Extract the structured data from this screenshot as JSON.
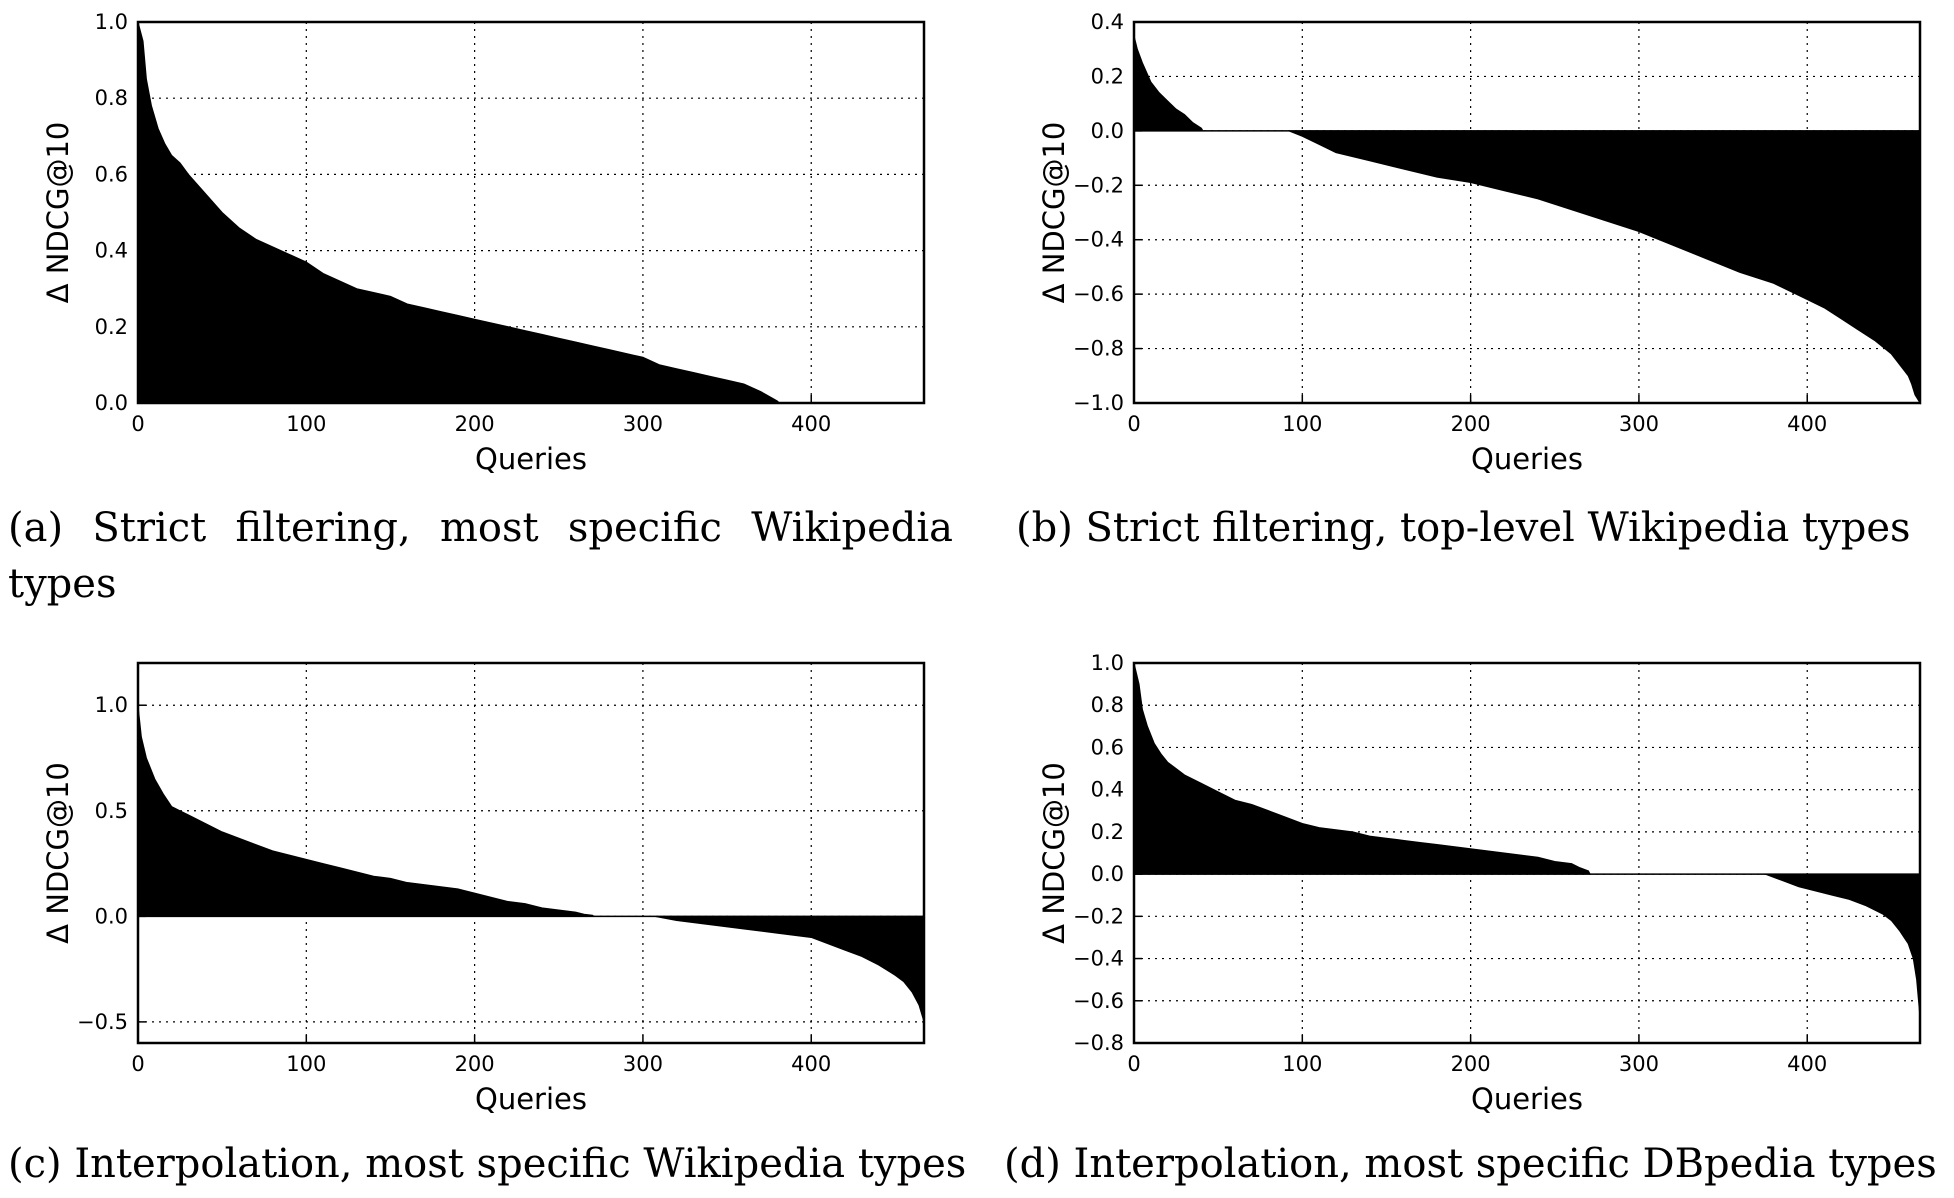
{
  "figure": {
    "captions": [
      "(a) Strict filtering, most specific Wikipedia types",
      "(b) Strict filtering, top-level Wikipedia types",
      "(c) Interpolation, most specific Wikipedia types",
      "(d) Interpolation, most specific DBpedia types"
    ]
  },
  "chart_data": [
    {
      "type": "area",
      "xlabel": "Queries",
      "ylabel": "Δ NDCG@10",
      "xlim": [
        0,
        467
      ],
      "ylim": [
        0.0,
        1.0
      ],
      "xticks": [
        0,
        100,
        200,
        300,
        400
      ],
      "yticks": [
        0.0,
        0.2,
        0.4,
        0.6,
        0.8,
        1.0
      ],
      "ytick_labels": [
        "0.0",
        "0.2",
        "0.4",
        "0.6",
        "0.8",
        "1.0"
      ],
      "grid": true,
      "fill_color": "#000000",
      "series": [
        {
          "x": [
            0,
            3,
            5,
            8,
            12,
            16,
            20,
            25,
            30,
            40,
            50,
            60,
            70,
            80,
            90,
            100,
            110,
            120,
            130,
            140,
            150,
            160,
            170,
            180,
            190,
            200,
            210,
            220,
            230,
            240,
            250,
            260,
            270,
            280,
            290,
            300,
            310,
            320,
            330,
            340,
            350,
            360,
            370,
            378,
            380,
            381,
            467
          ],
          "y": [
            1.0,
            0.95,
            0.85,
            0.78,
            0.72,
            0.68,
            0.65,
            0.63,
            0.6,
            0.55,
            0.5,
            0.46,
            0.43,
            0.41,
            0.39,
            0.37,
            0.34,
            0.32,
            0.3,
            0.29,
            0.28,
            0.26,
            0.25,
            0.24,
            0.23,
            0.22,
            0.21,
            0.2,
            0.19,
            0.18,
            0.17,
            0.16,
            0.15,
            0.14,
            0.13,
            0.12,
            0.1,
            0.09,
            0.08,
            0.07,
            0.06,
            0.05,
            0.03,
            0.01,
            0.005,
            0.0,
            0.0
          ]
        }
      ]
    },
    {
      "type": "area",
      "xlabel": "Queries",
      "ylabel": "Δ NDCG@10",
      "xlim": [
        0,
        467
      ],
      "ylim": [
        -1.0,
        0.4
      ],
      "xticks": [
        0,
        100,
        200,
        300,
        400
      ],
      "yticks": [
        -1.0,
        -0.8,
        -0.6,
        -0.4,
        -0.2,
        0.0,
        0.2,
        0.4
      ],
      "ytick_labels": [
        "−1.0",
        "−0.8",
        "−0.6",
        "−0.4",
        "−0.2",
        "0.0",
        "0.2",
        "0.4"
      ],
      "grid": true,
      "fill_color": "#000000",
      "series": [
        {
          "x": [
            0,
            2,
            5,
            10,
            15,
            20,
            25,
            30,
            35,
            40,
            41,
            90,
            92,
            100,
            110,
            120,
            140,
            160,
            180,
            200,
            220,
            240,
            260,
            280,
            300,
            320,
            340,
            360,
            380,
            400,
            410,
            420,
            430,
            440,
            450,
            455,
            460,
            462,
            464,
            467
          ],
          "y": [
            0.35,
            0.3,
            0.25,
            0.18,
            0.14,
            0.11,
            0.08,
            0.06,
            0.03,
            0.01,
            0.0,
            0.0,
            -0.0,
            -0.02,
            -0.05,
            -0.08,
            -0.11,
            -0.14,
            -0.17,
            -0.19,
            -0.22,
            -0.25,
            -0.29,
            -0.33,
            -0.37,
            -0.42,
            -0.47,
            -0.52,
            -0.56,
            -0.62,
            -0.65,
            -0.69,
            -0.73,
            -0.77,
            -0.82,
            -0.86,
            -0.9,
            -0.93,
            -0.97,
            -1.0
          ]
        }
      ]
    },
    {
      "type": "area",
      "xlabel": "Queries",
      "ylabel": "Δ NDCG@10",
      "xlim": [
        0,
        467
      ],
      "ylim": [
        -0.6,
        1.2
      ],
      "xticks": [
        0,
        100,
        200,
        300,
        400
      ],
      "yticks": [
        -0.5,
        0.0,
        0.5,
        1.0
      ],
      "ytick_labels": [
        "−0.5",
        "0.0",
        "0.5",
        "1.0"
      ],
      "grid": true,
      "fill_color": "#000000",
      "series": [
        {
          "x": [
            0,
            2,
            5,
            10,
            15,
            20,
            25,
            30,
            40,
            50,
            60,
            70,
            80,
            90,
            100,
            110,
            120,
            130,
            140,
            150,
            160,
            170,
            180,
            190,
            200,
            210,
            220,
            230,
            240,
            250,
            260,
            265,
            270,
            271,
            305,
            307,
            320,
            340,
            360,
            380,
            400,
            410,
            420,
            430,
            440,
            450,
            455,
            460,
            464,
            467
          ],
          "y": [
            1.0,
            0.85,
            0.75,
            0.65,
            0.58,
            0.52,
            0.5,
            0.48,
            0.44,
            0.4,
            0.37,
            0.34,
            0.31,
            0.29,
            0.27,
            0.25,
            0.23,
            0.21,
            0.19,
            0.18,
            0.16,
            0.15,
            0.14,
            0.13,
            0.11,
            0.09,
            0.07,
            0.06,
            0.04,
            0.03,
            0.02,
            0.01,
            0.005,
            0.0,
            0.0,
            -0.0,
            -0.02,
            -0.04,
            -0.06,
            -0.08,
            -0.1,
            -0.13,
            -0.16,
            -0.19,
            -0.23,
            -0.28,
            -0.31,
            -0.36,
            -0.42,
            -0.5
          ]
        }
      ]
    },
    {
      "type": "area",
      "xlabel": "Queries",
      "ylabel": "Δ NDCG@10",
      "xlim": [
        0,
        467
      ],
      "ylim": [
        -0.8,
        1.0
      ],
      "xticks": [
        0,
        100,
        200,
        300,
        400
      ],
      "yticks": [
        -0.8,
        -0.6,
        -0.4,
        -0.2,
        0.0,
        0.2,
        0.4,
        0.6,
        0.8,
        1.0
      ],
      "ytick_labels": [
        "−0.8",
        "−0.6",
        "−0.4",
        "−0.2",
        "0.0",
        "0.2",
        "0.4",
        "0.6",
        "0.8",
        "1.0"
      ],
      "grid": true,
      "fill_color": "#000000",
      "series": [
        {
          "x": [
            0,
            3,
            5,
            8,
            12,
            16,
            20,
            25,
            30,
            40,
            50,
            60,
            70,
            80,
            90,
            100,
            110,
            120,
            130,
            140,
            150,
            160,
            170,
            180,
            190,
            200,
            210,
            220,
            230,
            240,
            250,
            260,
            265,
            270,
            271,
            373,
            375,
            385,
            395,
            405,
            415,
            425,
            435,
            445,
            450,
            455,
            460,
            463,
            465,
            467
          ],
          "y": [
            1.0,
            0.9,
            0.78,
            0.7,
            0.62,
            0.57,
            0.53,
            0.5,
            0.47,
            0.43,
            0.39,
            0.35,
            0.33,
            0.3,
            0.27,
            0.24,
            0.22,
            0.21,
            0.2,
            0.18,
            0.17,
            0.16,
            0.15,
            0.14,
            0.13,
            0.12,
            0.11,
            0.1,
            0.09,
            0.08,
            0.06,
            0.05,
            0.03,
            0.015,
            0.0,
            0.0,
            -0.0,
            -0.03,
            -0.06,
            -0.08,
            -0.1,
            -0.12,
            -0.15,
            -0.19,
            -0.22,
            -0.27,
            -0.33,
            -0.4,
            -0.5,
            -0.68
          ]
        }
      ]
    }
  ]
}
